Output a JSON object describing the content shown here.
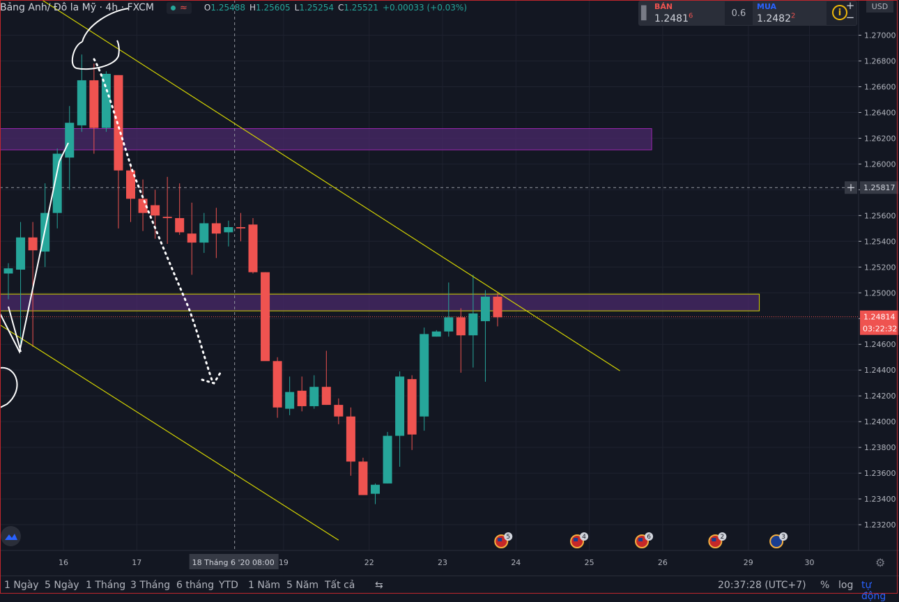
{
  "header": {
    "symbol": "Bảng Anh/ Đô la Mỹ",
    "interval": "4h",
    "exchange": "FXCM",
    "wave_icon": "≈",
    "ohlc": {
      "o_label": "O",
      "o_value": "1.25488",
      "h_label": "H",
      "h_value": "1.25605",
      "l_label": "L",
      "l_value": "1.25254",
      "c_label": "C",
      "c_value": "1.25521",
      "change": "+0.00033 (+0.03%)"
    }
  },
  "trade_panel": {
    "sell_label": "BÁN",
    "sell_main": "1.2481",
    "sell_sup": "6",
    "spread": "0.6",
    "buy_label": "MUA",
    "buy_main": "1.2482",
    "buy_sup": "2",
    "info_icon": "i"
  },
  "zoom": {
    "plus": "+",
    "minus": "−"
  },
  "currency": "USD",
  "colors": {
    "up": "#26a69a",
    "down": "#ef5350",
    "trendline": "#d7d700",
    "zone_fill": "#4a2a6a",
    "zone_border": "#9c27b0",
    "zone2_border": "#d7d700"
  },
  "chart_data": {
    "type": "candlestick",
    "symbol": "GBPUSD",
    "timeframe": "4h",
    "ylim": [
      1.2305,
      1.2728
    ],
    "y_ticks": [
      "1.27000",
      "1.26800",
      "1.26600",
      "1.26400",
      "1.26200",
      "1.26000",
      "1.25800",
      "1.25600",
      "1.25400",
      "1.25200",
      "1.25000",
      "1.24800",
      "1.24600",
      "1.24400",
      "1.24200",
      "1.24000",
      "1.23800",
      "1.23600",
      "1.23400",
      "1.23200"
    ],
    "x_tick_labels": [
      "16",
      "17",
      "19",
      "22",
      "23",
      "24",
      "25",
      "26",
      "29",
      "30"
    ],
    "x_tick_bars": [
      4.5,
      10.5,
      22.5,
      29.5,
      35.5,
      41.5,
      47.5,
      53.5,
      60.5,
      65.5
    ],
    "crosshair": {
      "price_label": "1.25817",
      "time_label": "18 Tháng 6 '20",
      "time_extra": "08:00"
    },
    "last_price": {
      "label": "1.24814",
      "countdown": "03:22:32",
      "value": 1.24814
    },
    "candles": [
      {
        "o": 1.2515,
        "h": 1.2523,
        "l": 1.2495,
        "c": 1.2519
      },
      {
        "o": 1.2518,
        "h": 1.2555,
        "l": 1.2458,
        "c": 1.2543
      },
      {
        "o": 1.2543,
        "h": 1.2555,
        "l": 1.2458,
        "c": 1.2533
      },
      {
        "o": 1.2532,
        "h": 1.2585,
        "l": 1.252,
        "c": 1.2562
      },
      {
        "o": 1.2562,
        "h": 1.2612,
        "l": 1.255,
        "c": 1.2608
      },
      {
        "o": 1.2605,
        "h": 1.2645,
        "l": 1.258,
        "c": 1.2632
      },
      {
        "o": 1.263,
        "h": 1.2685,
        "l": 1.2625,
        "c": 1.2665
      },
      {
        "o": 1.2665,
        "h": 1.2678,
        "l": 1.2608,
        "c": 1.2628
      },
      {
        "o": 1.2628,
        "h": 1.2672,
        "l": 1.2625,
        "c": 1.267
      },
      {
        "o": 1.2669,
        "h": 1.2669,
        "l": 1.255,
        "c": 1.2595
      },
      {
        "o": 1.2595,
        "h": 1.26,
        "l": 1.2555,
        "c": 1.2573
      },
      {
        "o": 1.2573,
        "h": 1.2588,
        "l": 1.2548,
        "c": 1.2562
      },
      {
        "o": 1.2568,
        "h": 1.258,
        "l": 1.2542,
        "c": 1.256
      },
      {
        "o": 1.2559,
        "h": 1.259,
        "l": 1.2538,
        "c": 1.2558
      },
      {
        "o": 1.2558,
        "h": 1.2585,
        "l": 1.2545,
        "c": 1.2547
      },
      {
        "o": 1.2546,
        "h": 1.257,
        "l": 1.2514,
        "c": 1.2539
      },
      {
        "o": 1.2539,
        "h": 1.2562,
        "l": 1.2531,
        "c": 1.2554
      },
      {
        "o": 1.2554,
        "h": 1.2566,
        "l": 1.2527,
        "c": 1.2546
      },
      {
        "o": 1.2547,
        "h": 1.2556,
        "l": 1.2536,
        "c": 1.2551
      },
      {
        "o": 1.2551,
        "h": 1.2562,
        "l": 1.254,
        "c": 1.255
      },
      {
        "o": 1.2553,
        "h": 1.2558,
        "l": 1.2515,
        "c": 1.2516
      },
      {
        "o": 1.2516,
        "h": 1.2516,
        "l": 1.245,
        "c": 1.2447
      },
      {
        "o": 1.2447,
        "h": 1.245,
        "l": 1.2403,
        "c": 1.2411
      },
      {
        "o": 1.241,
        "h": 1.2435,
        "l": 1.2405,
        "c": 1.2423
      },
      {
        "o": 1.2424,
        "h": 1.2435,
        "l": 1.2408,
        "c": 1.2412
      },
      {
        "o": 1.2412,
        "h": 1.2436,
        "l": 1.241,
        "c": 1.2427
      },
      {
        "o": 1.2427,
        "h": 1.2455,
        "l": 1.2413,
        "c": 1.2413
      },
      {
        "o": 1.2413,
        "h": 1.2418,
        "l": 1.2398,
        "c": 1.2404
      },
      {
        "o": 1.2404,
        "h": 1.2411,
        "l": 1.2358,
        "c": 1.2369
      },
      {
        "o": 1.2369,
        "h": 1.2372,
        "l": 1.2343,
        "c": 1.2343
      },
      {
        "o": 1.2344,
        "h": 1.2352,
        "l": 1.2336,
        "c": 1.2351
      },
      {
        "o": 1.2352,
        "h": 1.2392,
        "l": 1.2352,
        "c": 1.2389
      },
      {
        "o": 1.2389,
        "h": 1.2439,
        "l": 1.2365,
        "c": 1.2435
      },
      {
        "o": 1.2433,
        "h": 1.2436,
        "l": 1.2378,
        "c": 1.239
      },
      {
        "o": 1.2404,
        "h": 1.2473,
        "l": 1.2393,
        "c": 1.2468
      },
      {
        "o": 1.2466,
        "h": 1.2471,
        "l": 1.2466,
        "c": 1.247
      },
      {
        "o": 1.247,
        "h": 1.2508,
        "l": 1.2466,
        "c": 1.2481
      },
      {
        "o": 1.2481,
        "h": 1.2488,
        "l": 1.2438,
        "c": 1.2467
      },
      {
        "o": 1.2467,
        "h": 1.2514,
        "l": 1.2442,
        "c": 1.2484
      },
      {
        "o": 1.2478,
        "h": 1.2502,
        "l": 1.2431,
        "c": 1.2497
      },
      {
        "o": 1.2497,
        "h": 1.25,
        "l": 1.2474,
        "c": 1.2481
      }
    ],
    "zones": [
      {
        "top": 1.26275,
        "bottom": 1.2611,
        "to_bar": 52.6,
        "style": "purple"
      },
      {
        "top": 1.2499,
        "bottom": 1.2486,
        "to_bar": 61.4,
        "style": "yellow"
      }
    ],
    "trendlines": [
      {
        "x1": 1.0,
        "y1": 1.2738,
        "x2": 50.0,
        "y2": 1.24395
      },
      {
        "x1": -1.0,
        "y1": 1.2477,
        "x2": 27.0,
        "y2": 1.2308
      }
    ],
    "annotations": {
      "drawing": "hand-drawn white circle and zigzag at top-left; dotted descending arrow"
    },
    "events": [
      {
        "flag": "US",
        "count": "5",
        "bar": 40.3
      },
      {
        "flag": "US",
        "count": "4",
        "bar": 46.5
      },
      {
        "flag": "US",
        "count": "6",
        "bar": 51.8
      },
      {
        "flag": "US",
        "count": "2",
        "bar": 57.8
      },
      {
        "flag": "UK",
        "count": "3",
        "bar": 62.8
      }
    ]
  },
  "bottom_bar": {
    "timeframes": [
      "1 Ngày",
      "5 Ngày",
      "1 Tháng",
      "3 Tháng",
      "6 tháng",
      "YTD",
      "1 Năm",
      "5 Năm",
      "Tất cả"
    ],
    "clock": "20:37:28 (UTC+7)",
    "percent": "%",
    "log": "log",
    "auto": "tự động"
  }
}
